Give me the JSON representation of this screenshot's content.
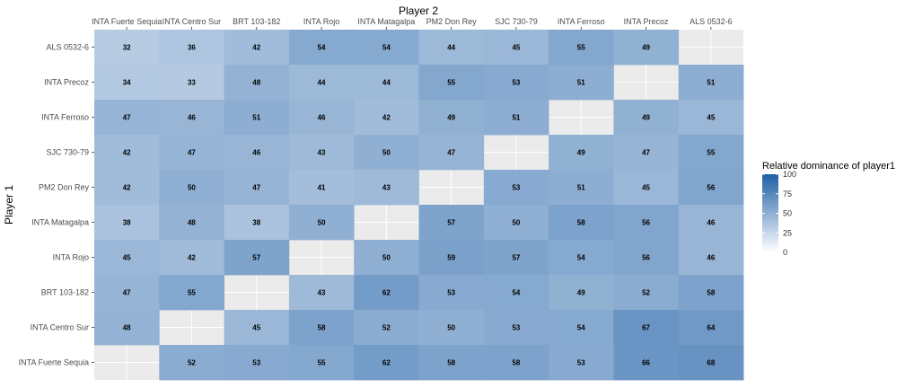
{
  "chart_data": {
    "type": "heatmap",
    "title": "",
    "xlabel": "Player 2",
    "ylabel": "Player 1",
    "x_categories": [
      "INTA Fuerte Sequia",
      "INTA Centro Sur",
      "BRT 103-182",
      "INTA Rojo",
      "INTA Matagalpa",
      "PM2 Don Rey",
      "SJC 730-79",
      "INTA Ferroso",
      "INTA Precoz",
      "ALS 0532-6"
    ],
    "y_categories": [
      "ALS 0532-6",
      "INTA Precoz",
      "INTA Ferroso",
      "SJC 730-79",
      "PM2 Don Rey",
      "INTA Matagalpa",
      "INTA Rojo",
      "BRT 103-182",
      "INTA Centro Sur",
      "INTA Fuerte Sequia"
    ],
    "values": [
      [
        32,
        36,
        42,
        54,
        54,
        44,
        45,
        55,
        49,
        null
      ],
      [
        34,
        33,
        48,
        44,
        44,
        55,
        53,
        51,
        null,
        51
      ],
      [
        47,
        46,
        51,
        46,
        42,
        49,
        51,
        null,
        49,
        45
      ],
      [
        42,
        47,
        46,
        43,
        50,
        47,
        null,
        49,
        47,
        55
      ],
      [
        42,
        50,
        47,
        41,
        43,
        null,
        53,
        51,
        45,
        56
      ],
      [
        38,
        48,
        38,
        50,
        null,
        57,
        50,
        58,
        56,
        46
      ],
      [
        45,
        42,
        57,
        null,
        50,
        59,
        57,
        54,
        56,
        46
      ],
      [
        47,
        55,
        null,
        43,
        62,
        53,
        54,
        49,
        52,
        58
      ],
      [
        48,
        null,
        45,
        58,
        52,
        50,
        53,
        54,
        67,
        64
      ],
      [
        null,
        52,
        53,
        55,
        62,
        58,
        58,
        53,
        66,
        68
      ]
    ],
    "legend": {
      "title": "Relative dominance of player1",
      "min": 0,
      "max": 100,
      "ticks": [
        "100",
        "75",
        "50",
        "25",
        "0"
      ],
      "position": "right"
    },
    "color_low": "#ffffff",
    "color_high": "#1f5fa6",
    "na_color": "#e6e6e6",
    "panel_background": "#ebebeb",
    "grid": true
  }
}
